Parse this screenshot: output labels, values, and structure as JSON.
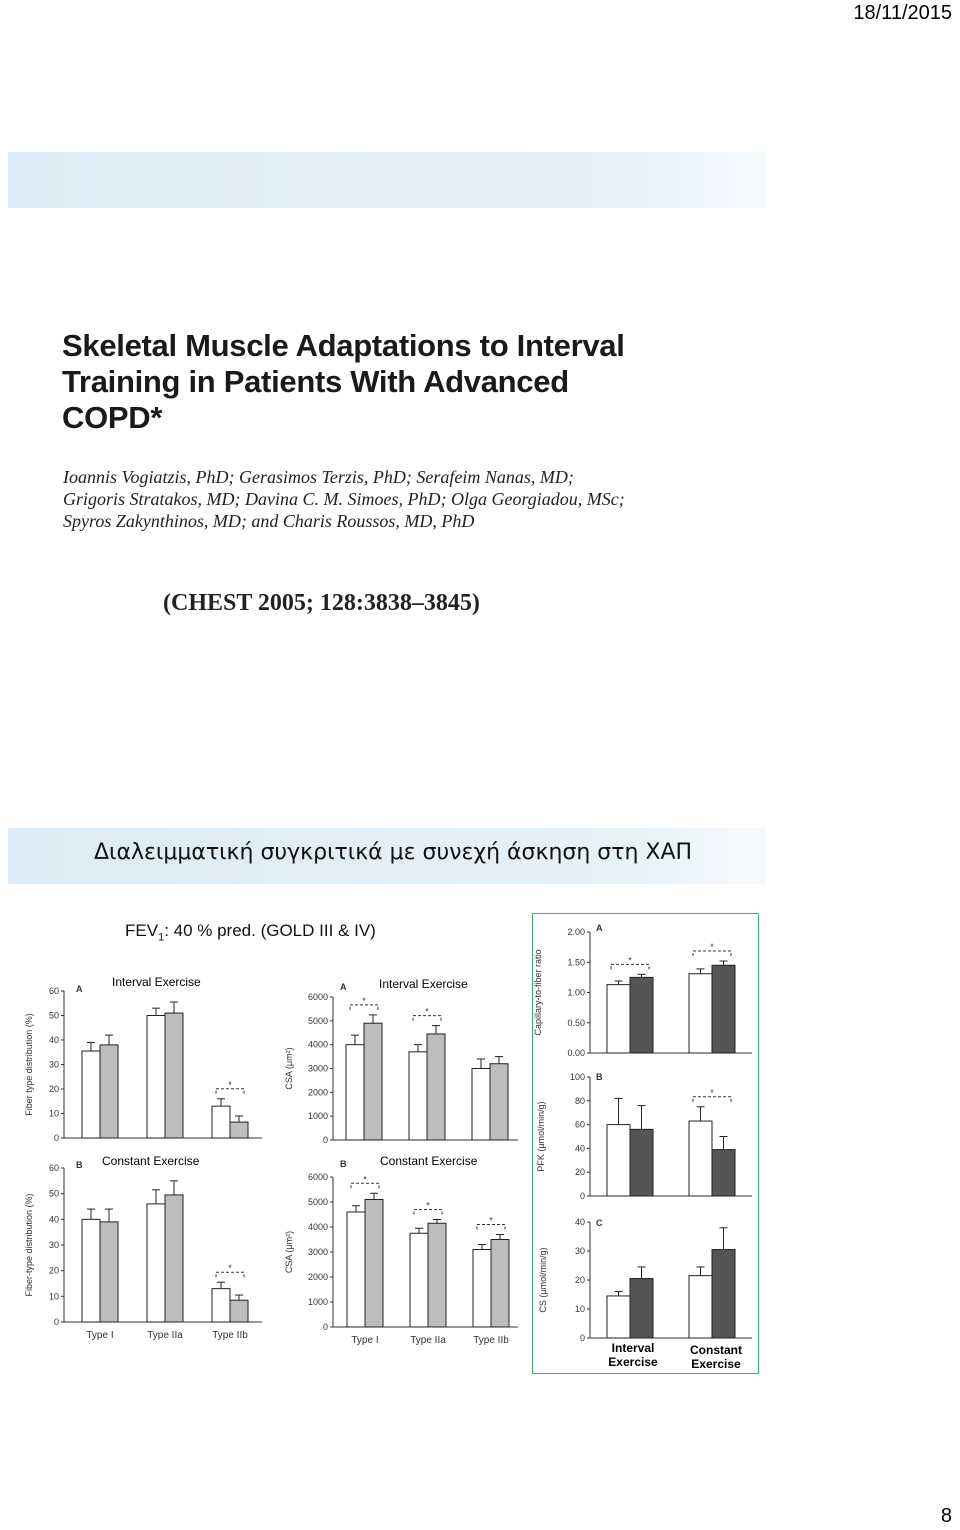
{
  "header": {
    "date": "18/11/2015"
  },
  "paper": {
    "title_lines": [
      "Skeletal Muscle Adaptations to Interval",
      "Training in Patients With Advanced",
      "COPD*"
    ],
    "authors_lines": [
      "Ioannis Vogiatzis, PhD; Gerasimos Terzis, PhD; Serafeim Nanas, MD;",
      "Grigoris Stratakos, MD; Davina C. M. Simoes, PhD; Olga Georgiadou, MSc;",
      "Spyros Zakynthinos, MD; and Charis Roussos, MD, PhD"
    ],
    "citation": "(CHEST 2005; 128:3838–3845)"
  },
  "slide": {
    "heading": "Διαλειμματική συγκριτικά με συνεχή άσκηση στη ΧΑΠ",
    "fev_label": "FEV",
    "fev_sub": "1",
    "fev_rest": ": 40 % pred. (GOLD III & IV)"
  },
  "labels": {
    "interval": "Interval Exercise",
    "constant": "Constant Exercise",
    "interval_line1": "Interval",
    "constant_line1": "Constant",
    "exercise": "Exercise"
  },
  "footer": {
    "page": "8"
  },
  "chart_data": [
    {
      "type": "bar",
      "panel": "A",
      "title": "Interval Exercise",
      "ylabel": "Fiber type distribution (%)",
      "ylim": [
        0,
        60
      ],
      "yticks": [
        0,
        10,
        20,
        30,
        40,
        50,
        60
      ],
      "categories": [
        "Type I",
        "Type IIa",
        "Type IIb"
      ],
      "series": [
        {
          "values": [
            35.5,
            50,
            13
          ],
          "errors": [
            3.5,
            3,
            3
          ]
        },
        {
          "values": [
            38,
            51,
            6.5
          ],
          "errors": [
            4,
            4.5,
            2.5
          ]
        }
      ],
      "significant": [
        false,
        false,
        true
      ]
    },
    {
      "type": "bar",
      "panel": "A",
      "title": "Interval Exercise",
      "ylabel": "CSA (μm²)",
      "ylim": [
        0,
        6000
      ],
      "yticks": [
        0,
        1000,
        2000,
        3000,
        4000,
        5000,
        6000
      ],
      "categories": [
        "Type I",
        "Type IIa",
        "Type IIb"
      ],
      "series": [
        {
          "values": [
            4000,
            3700,
            3000
          ],
          "errors": [
            400,
            300,
            400
          ]
        },
        {
          "values": [
            4900,
            4450,
            3200
          ],
          "errors": [
            350,
            350,
            300
          ]
        }
      ],
      "significant": [
        true,
        true,
        false
      ]
    },
    {
      "type": "bar",
      "panel": "B",
      "title": "Constant Exercise",
      "ylabel": "Fiber-type distribution (%)",
      "ylim": [
        0,
        60
      ],
      "yticks": [
        0,
        10,
        20,
        30,
        40,
        50,
        60
      ],
      "categories": [
        "Type I",
        "Type IIa",
        "Type IIb"
      ],
      "series": [
        {
          "values": [
            40,
            46,
            13
          ],
          "errors": [
            4,
            5.5,
            2.5
          ]
        },
        {
          "values": [
            39,
            49.5,
            8.5
          ],
          "errors": [
            5,
            5.5,
            2
          ]
        }
      ],
      "significant": [
        false,
        false,
        true
      ]
    },
    {
      "type": "bar",
      "panel": "B",
      "title": "Constant Exercise",
      "ylabel": "CSA (μm²)",
      "ylim": [
        0,
        6000
      ],
      "yticks": [
        0,
        1000,
        2000,
        3000,
        4000,
        5000,
        6000
      ],
      "categories": [
        "Type I",
        "Type IIa",
        "Type IIb"
      ],
      "series": [
        {
          "values": [
            4600,
            3750,
            3100
          ],
          "errors": [
            250,
            200,
            200
          ]
        },
        {
          "values": [
            5100,
            4150,
            3500
          ],
          "errors": [
            250,
            150,
            200
          ]
        }
      ],
      "significant": [
        true,
        true,
        true
      ]
    },
    {
      "type": "bar",
      "panel": "A",
      "ylabel": "Capillary-to-fiber ratio",
      "ylim": [
        0,
        2
      ],
      "yticks": [
        "0.00",
        "0.50",
        "1.00",
        "1.50",
        "2.00"
      ],
      "categories": [
        "Interval Exercise",
        "Constant Exercise"
      ],
      "series": [
        {
          "values": [
            1.13,
            1.31
          ],
          "errors": [
            0.06,
            0.08
          ]
        },
        {
          "values": [
            1.25,
            1.45
          ],
          "errors": [
            0.05,
            0.07
          ]
        }
      ],
      "significant": [
        true,
        true
      ]
    },
    {
      "type": "bar",
      "panel": "B",
      "ylabel": "PFK (μmol/min/g)",
      "ylim": [
        0,
        100
      ],
      "yticks": [
        0,
        20,
        40,
        60,
        80,
        100
      ],
      "categories": [
        "Interval Exercise",
        "Constant Exercise"
      ],
      "series": [
        {
          "values": [
            60,
            63
          ],
          "errors": [
            22,
            12
          ]
        },
        {
          "values": [
            56,
            39
          ],
          "errors": [
            20,
            11
          ]
        }
      ],
      "significant": [
        false,
        true
      ]
    },
    {
      "type": "bar",
      "panel": "C",
      "ylabel": "CS (μmol/min/g)",
      "ylim": [
        0,
        40
      ],
      "yticks": [
        0,
        10,
        20,
        30,
        40
      ],
      "categories": [
        "Interval Exercise",
        "Constant Exercise"
      ],
      "series": [
        {
          "values": [
            14.5,
            21.5
          ],
          "errors": [
            1.5,
            3
          ]
        },
        {
          "values": [
            20.5,
            30.5
          ],
          "errors": [
            4,
            7.5
          ]
        }
      ],
      "significant": [
        false,
        false
      ]
    }
  ]
}
